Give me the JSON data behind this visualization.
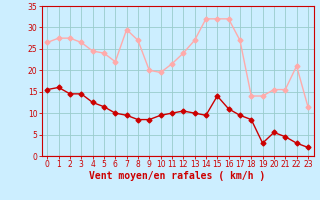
{
  "x": [
    0,
    1,
    2,
    3,
    4,
    5,
    6,
    7,
    8,
    9,
    10,
    11,
    12,
    13,
    14,
    15,
    16,
    17,
    18,
    19,
    20,
    21,
    22,
    23
  ],
  "avg_wind": [
    15.5,
    16,
    14.5,
    14.5,
    12.5,
    11.5,
    10,
    9.5,
    8.5,
    8.5,
    9.5,
    10,
    10.5,
    10,
    9.5,
    14,
    11,
    9.5,
    8.5,
    3,
    5.5,
    4.5,
    3,
    2
  ],
  "gust_wind": [
    26.5,
    27.5,
    27.5,
    26.5,
    24.5,
    24,
    22,
    29.5,
    27,
    20,
    19.5,
    21.5,
    24,
    27,
    32,
    32,
    32,
    27,
    14,
    14,
    15.5,
    15.5,
    21,
    11.5
  ],
  "avg_color": "#cc0000",
  "gust_color": "#ffaaaa",
  "bg_color": "#cceeff",
  "grid_color": "#99cccc",
  "xlabel": "Vent moyen/en rafales ( km/h )",
  "ylim": [
    0,
    35
  ],
  "xlim_min": -0.5,
  "xlim_max": 23.5,
  "yticks": [
    0,
    5,
    10,
    15,
    20,
    25,
    30,
    35
  ],
  "xticks": [
    0,
    1,
    2,
    3,
    4,
    5,
    6,
    7,
    8,
    9,
    10,
    11,
    12,
    13,
    14,
    15,
    16,
    17,
    18,
    19,
    20,
    21,
    22,
    23
  ],
  "tick_fontsize": 5.5,
  "xlabel_fontsize": 7,
  "marker_size": 2.5,
  "linewidth": 1.0
}
